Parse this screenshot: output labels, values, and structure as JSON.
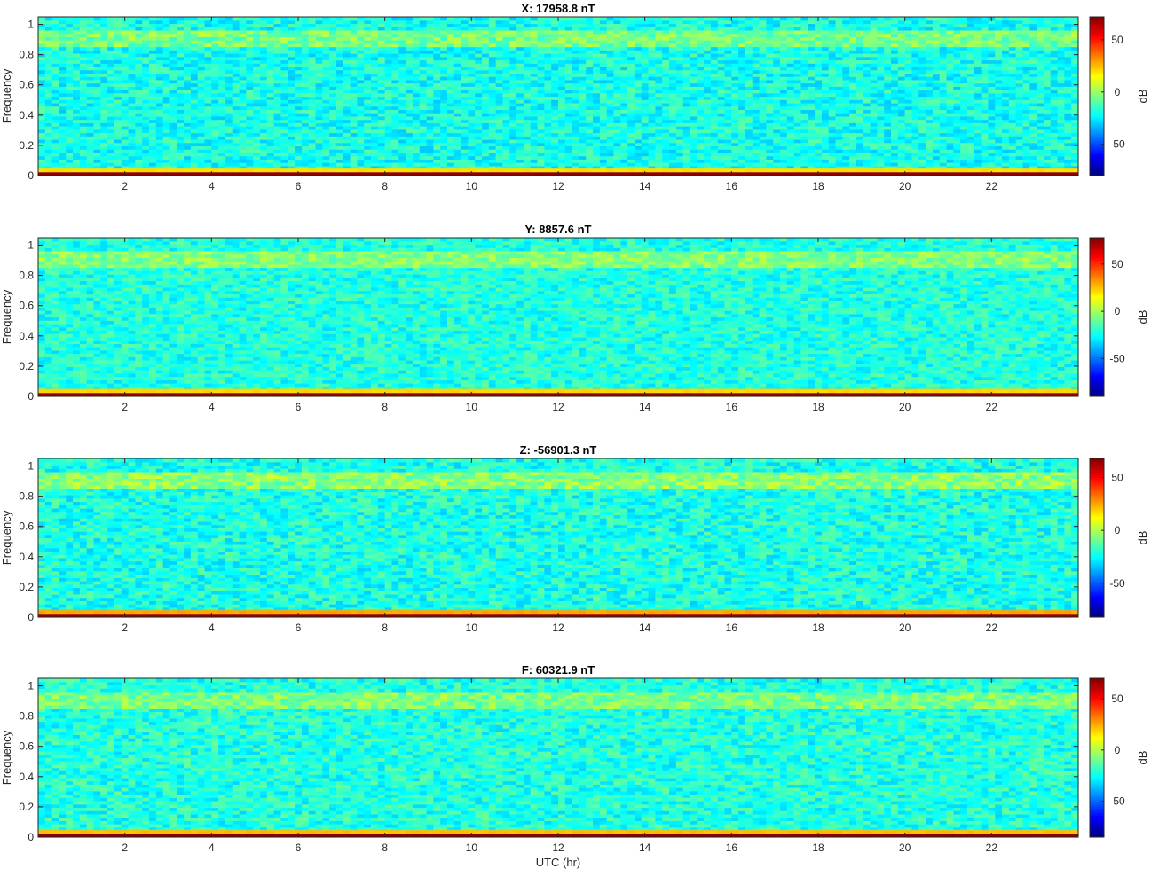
{
  "chart_data": [
    {
      "type": "heatmap",
      "title": "X: 17958.8 nT",
      "ylabel": "Frequency",
      "xlabel": "",
      "xlim": [
        0,
        24
      ],
      "ylim": [
        0,
        1.05
      ],
      "x_ticks": [
        "2",
        "4",
        "6",
        "8",
        "10",
        "12",
        "14",
        "16",
        "18",
        "20",
        "22"
      ],
      "y_ticks": [
        "0",
        "0.2",
        "0.4",
        "0.6",
        "0.8",
        "1"
      ],
      "colorbar": {
        "label": "dB",
        "range": [
          -80,
          72
        ],
        "ticks": [
          "50",
          "0",
          "-50"
        ],
        "colormap": "jet"
      },
      "bands": [
        {
          "freq_range": [
            0,
            0.01
          ],
          "level_db": 70
        },
        {
          "freq_range": [
            0.01,
            0.05
          ],
          "level_db": 20
        },
        {
          "freq_range": [
            0.05,
            0.85
          ],
          "level_db": -20
        },
        {
          "freq_range": [
            0.85,
            0.97
          ],
          "level_db": -5
        },
        {
          "freq_range": [
            0.97,
            1.05
          ],
          "level_db": -20
        }
      ]
    },
    {
      "type": "heatmap",
      "title": "Y: 8857.6 nT",
      "ylabel": "Frequency",
      "xlabel": "",
      "xlim": [
        0,
        24
      ],
      "ylim": [
        0,
        1.05
      ],
      "x_ticks": [
        "2",
        "4",
        "6",
        "8",
        "10",
        "12",
        "14",
        "16",
        "18",
        "20",
        "22"
      ],
      "y_ticks": [
        "0",
        "0.2",
        "0.4",
        "0.6",
        "0.8",
        "1"
      ],
      "colorbar": {
        "label": "dB",
        "range": [
          -90,
          78
        ],
        "ticks": [
          "50",
          "0",
          "-50"
        ],
        "colormap": "jet"
      },
      "bands": [
        {
          "freq_range": [
            0,
            0.01
          ],
          "level_db": 75
        },
        {
          "freq_range": [
            0.01,
            0.05
          ],
          "level_db": 22
        },
        {
          "freq_range": [
            0.05,
            0.85
          ],
          "level_db": -22
        },
        {
          "freq_range": [
            0.85,
            0.97
          ],
          "level_db": -5
        },
        {
          "freq_range": [
            0.97,
            1.05
          ],
          "level_db": -22
        }
      ]
    },
    {
      "type": "heatmap",
      "title": "Z: -56901.3 nT",
      "ylabel": "Frequency",
      "xlabel": "",
      "xlim": [
        0,
        24
      ],
      "ylim": [
        0,
        1.05
      ],
      "x_ticks": [
        "2",
        "4",
        "6",
        "8",
        "10",
        "12",
        "14",
        "16",
        "18",
        "20",
        "22"
      ],
      "y_ticks": [
        "0",
        "0.2",
        "0.4",
        "0.6",
        "0.8",
        "1"
      ],
      "colorbar": {
        "label": "dB",
        "range": [
          -82,
          68
        ],
        "ticks": [
          "50",
          "0",
          "-50"
        ],
        "colormap": "jet"
      },
      "bands": [
        {
          "freq_range": [
            0,
            0.01
          ],
          "level_db": 65
        },
        {
          "freq_range": [
            0.01,
            0.05
          ],
          "level_db": 25
        },
        {
          "freq_range": [
            0.05,
            0.85
          ],
          "level_db": -22
        },
        {
          "freq_range": [
            0.85,
            0.97
          ],
          "level_db": -5
        },
        {
          "freq_range": [
            0.97,
            1.05
          ],
          "level_db": -22
        }
      ]
    },
    {
      "type": "heatmap",
      "title": "F: 60321.9 nT",
      "ylabel": "Frequency",
      "xlabel": "UTC (hr)",
      "xlim": [
        0,
        24
      ],
      "ylim": [
        0,
        1.05
      ],
      "x_ticks": [
        "2",
        "4",
        "6",
        "8",
        "10",
        "12",
        "14",
        "16",
        "18",
        "20",
        "22"
      ],
      "y_ticks": [
        "0",
        "0.2",
        "0.4",
        "0.6",
        "0.8",
        "1"
      ],
      "colorbar": {
        "label": "dB",
        "range": [
          -85,
          70
        ],
        "ticks": [
          "50",
          "0",
          "-50"
        ],
        "colormap": "jet"
      },
      "bands": [
        {
          "freq_range": [
            0,
            0.01
          ],
          "level_db": 68
        },
        {
          "freq_range": [
            0.01,
            0.05
          ],
          "level_db": 22
        },
        {
          "freq_range": [
            0.05,
            0.85
          ],
          "level_db": -22
        },
        {
          "freq_range": [
            0.85,
            0.97
          ],
          "level_db": -8
        },
        {
          "freq_range": [
            0.97,
            1.05
          ],
          "level_db": -22
        }
      ]
    }
  ]
}
